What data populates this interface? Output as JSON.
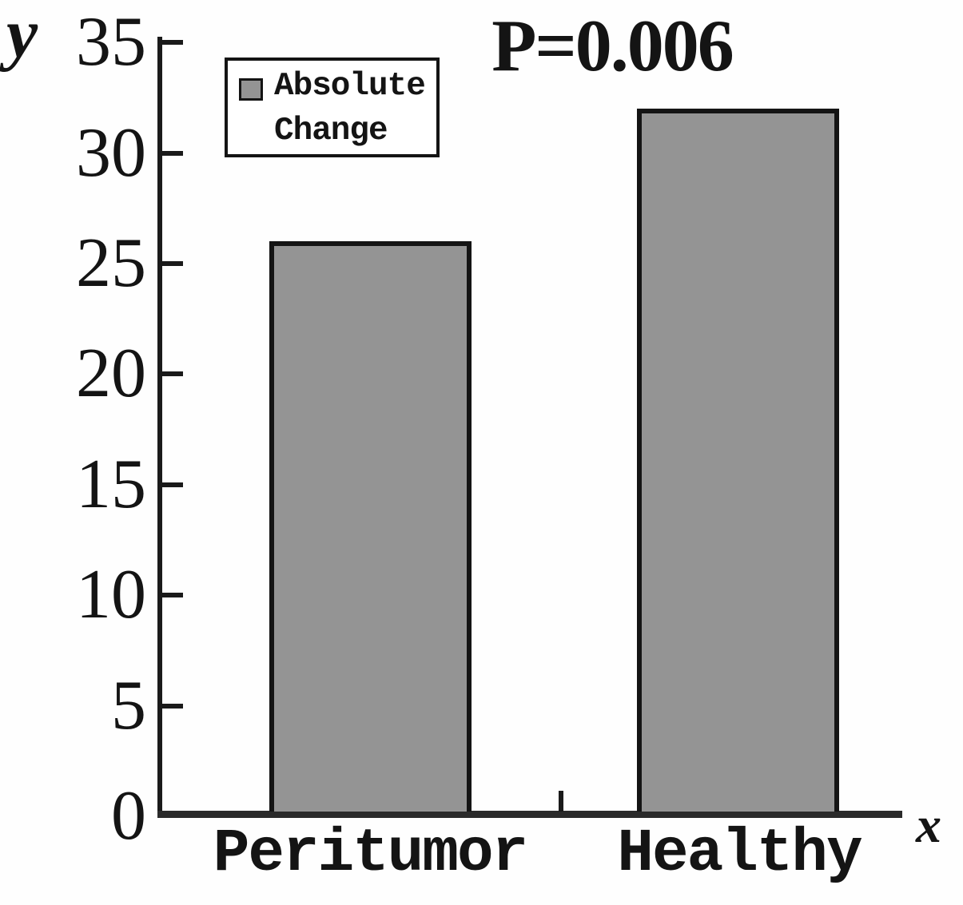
{
  "legend": {
    "label": "Absolute Change",
    "lines": [
      "Absolute",
      "Change"
    ],
    "swatch_color": "#949494"
  },
  "chart_data": {
    "type": "bar",
    "title": "P=0.006",
    "annotation": "P=0.006",
    "categories": [
      "Peritumor",
      "Healthy"
    ],
    "series": [
      {
        "name": "Absolute Change",
        "values": [
          26,
          32
        ]
      }
    ],
    "values": [
      26,
      32
    ],
    "xlabel": "x",
    "ylabel": "y",
    "ylim": [
      0,
      35
    ],
    "yticks": [
      0,
      5,
      10,
      15,
      20,
      25,
      30,
      35
    ],
    "ytick_labels_top_to_bottom": [
      "35",
      "30",
      "25",
      "20",
      "15",
      "10",
      "5",
      "0"
    ],
    "legend_position": "upper left",
    "grid": false,
    "bar_color": "#949494",
    "bar_border_color": "#141414",
    "axis_color": "#1a1a1a"
  }
}
